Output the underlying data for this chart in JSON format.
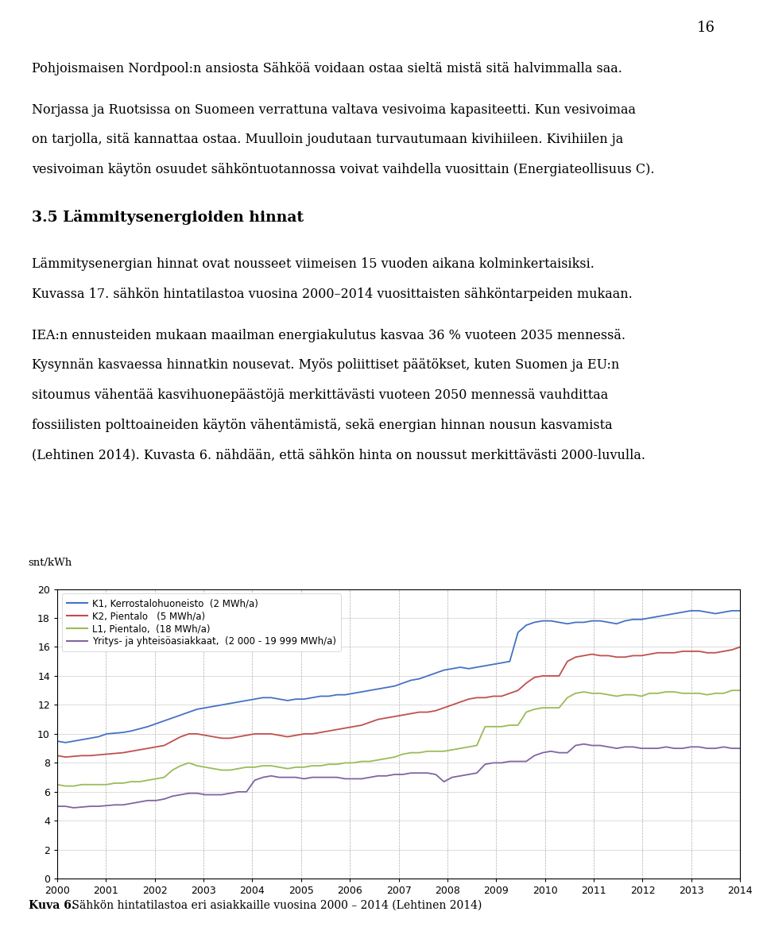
{
  "page_number": "16",
  "para1": "Pohjoismaisen Nordpool:n ansiosta Sähköä voidaan ostaa sieltä mistä sitä halvimmalla saa.",
  "para2a": "Norjassa ja Ruotsissa on Suomeen verrattuna valtava vesivoima kapasiteetti. Kun vesivoimaa",
  "para2b": "on tarjolla, sitä kannattaa ostaa. Muulloin joudutaan turvautumaan kivihiileen. Kivihiilen ja",
  "para2c": "vesivoiman käytön osuudet sähköntuotannossa voivat vaihdella vuosittain (Energiateollisuus C).",
  "heading": "3.5 Lämmitysenergioiden hinnat",
  "para3a": "Lämmitysenergian hinnat ovat nousseet viimeisen 15 vuoden aikana kolminkertaisiksi.",
  "para3b": "Kuvassa 17. sähkön hintatilastoa vuosina 2000–2014 vuosittaisten sähköntarpeiden mukaan.",
  "para4a": "IEA:n ennusteiden mukaan maailman energiakulutus kasvaa 36 % vuoteen 2035 mennessä.",
  "para4b": "Kysynnän kasvaessa hinnatkin nousevat. Myös poliittiset päätökset, kuten Suomen ja EU:n",
  "para4c": "sitoumus vähentää kasvihuonepäästöjä merkittävästi vuoteen 2050 mennessä vauhdittaa",
  "para4d": "fossiilisten polttoaineiden käytön vähentämistä, sekä energian hinnan nousun kasvamista",
  "para4e": "(Lehtinen 2014). Kuvasta 6. nähdään, että sähkön hinta on noussut merkittävästi 2000-luvulla.",
  "ylabel": "snt/kWh",
  "ylim": [
    0,
    20
  ],
  "yticks": [
    0,
    2,
    4,
    6,
    8,
    10,
    12,
    14,
    16,
    18,
    20
  ],
  "xlim": [
    2000,
    2014
  ],
  "xticks": [
    2000,
    2001,
    2002,
    2003,
    2004,
    2005,
    2006,
    2007,
    2008,
    2009,
    2010,
    2011,
    2012,
    2013,
    2014
  ],
  "legend_entries": [
    "K1, Kerrostalohuoneisto  (2 MWh/a)",
    "K2, Pientalo   (5 MWh/a)",
    "L1, Pientalo,  (18 MWh/a)",
    "Yritys- ja yhteisöasiakkaat,  (2 000 - 19 999 MWh/a)"
  ],
  "line_colors": [
    "#4472C4",
    "#C0504D",
    "#9BBB59",
    "#8064A2"
  ],
  "caption_bold": "Kuva 6.",
  "caption_normal": " Sähkön hintatilastoa eri asiakkaille vuosina 2000 – 2014 (Lehtinen 2014)",
  "K1_data": [
    9.5,
    9.4,
    9.5,
    9.6,
    9.7,
    9.8,
    10.0,
    10.05,
    10.1,
    10.2,
    10.35,
    10.5,
    10.7,
    10.9,
    11.1,
    11.3,
    11.5,
    11.7,
    11.8,
    11.9,
    12.0,
    12.1,
    12.2,
    12.3,
    12.4,
    12.5,
    12.5,
    12.4,
    12.3,
    12.4,
    12.4,
    12.5,
    12.6,
    12.6,
    12.7,
    12.7,
    12.8,
    12.9,
    13.0,
    13.1,
    13.2,
    13.3,
    13.5,
    13.7,
    13.8,
    14.0,
    14.2,
    14.4,
    14.5,
    14.6,
    14.5,
    14.6,
    14.7,
    14.8,
    14.9,
    15.0,
    17.0,
    17.5,
    17.7,
    17.8,
    17.8,
    17.7,
    17.6,
    17.7,
    17.7,
    17.8,
    17.8,
    17.7,
    17.6,
    17.8,
    17.9,
    17.9,
    18.0,
    18.1,
    18.2,
    18.3,
    18.4,
    18.5,
    18.5,
    18.4,
    18.3,
    18.4,
    18.5,
    18.5
  ],
  "K2_data": [
    8.5,
    8.4,
    8.45,
    8.5,
    8.5,
    8.55,
    8.6,
    8.65,
    8.7,
    8.8,
    8.9,
    9.0,
    9.1,
    9.2,
    9.5,
    9.8,
    10.0,
    10.0,
    9.9,
    9.8,
    9.7,
    9.7,
    9.8,
    9.9,
    10.0,
    10.0,
    10.0,
    9.9,
    9.8,
    9.9,
    10.0,
    10.0,
    10.1,
    10.2,
    10.3,
    10.4,
    10.5,
    10.6,
    10.8,
    11.0,
    11.1,
    11.2,
    11.3,
    11.4,
    11.5,
    11.5,
    11.6,
    11.8,
    12.0,
    12.2,
    12.4,
    12.5,
    12.5,
    12.6,
    12.6,
    12.8,
    13.0,
    13.5,
    13.9,
    14.0,
    14.0,
    14.0,
    15.0,
    15.3,
    15.4,
    15.5,
    15.4,
    15.4,
    15.3,
    15.3,
    15.4,
    15.4,
    15.5,
    15.6,
    15.6,
    15.6,
    15.7,
    15.7,
    15.7,
    15.6,
    15.6,
    15.7,
    15.8,
    16.0
  ],
  "L1_data": [
    6.5,
    6.4,
    6.4,
    6.5,
    6.5,
    6.5,
    6.5,
    6.6,
    6.6,
    6.7,
    6.7,
    6.8,
    6.9,
    7.0,
    7.5,
    7.8,
    8.0,
    7.8,
    7.7,
    7.6,
    7.5,
    7.5,
    7.6,
    7.7,
    7.7,
    7.8,
    7.8,
    7.7,
    7.6,
    7.7,
    7.7,
    7.8,
    7.8,
    7.9,
    7.9,
    8.0,
    8.0,
    8.1,
    8.1,
    8.2,
    8.3,
    8.4,
    8.6,
    8.7,
    8.7,
    8.8,
    8.8,
    8.8,
    8.9,
    9.0,
    9.1,
    9.2,
    10.5,
    10.5,
    10.5,
    10.6,
    10.6,
    11.5,
    11.7,
    11.8,
    11.8,
    11.8,
    12.5,
    12.8,
    12.9,
    12.8,
    12.8,
    12.7,
    12.6,
    12.7,
    12.7,
    12.6,
    12.8,
    12.8,
    12.9,
    12.9,
    12.8,
    12.8,
    12.8,
    12.7,
    12.8,
    12.8,
    13.0,
    13.0
  ],
  "purple_data": [
    5.0,
    5.0,
    4.9,
    4.95,
    5.0,
    5.0,
    5.05,
    5.1,
    5.1,
    5.2,
    5.3,
    5.4,
    5.4,
    5.5,
    5.7,
    5.8,
    5.9,
    5.9,
    5.8,
    5.8,
    5.8,
    5.9,
    6.0,
    6.0,
    6.8,
    7.0,
    7.1,
    7.0,
    7.0,
    7.0,
    6.9,
    7.0,
    7.0,
    7.0,
    7.0,
    6.9,
    6.9,
    6.9,
    7.0,
    7.1,
    7.1,
    7.2,
    7.2,
    7.3,
    7.3,
    7.3,
    7.2,
    6.7,
    7.0,
    7.1,
    7.2,
    7.3,
    7.9,
    8.0,
    8.0,
    8.1,
    8.1,
    8.1,
    8.5,
    8.7,
    8.8,
    8.7,
    8.7,
    9.2,
    9.3,
    9.2,
    9.2,
    9.1,
    9.0,
    9.1,
    9.1,
    9.0,
    9.0,
    9.0,
    9.1,
    9.0,
    9.0,
    9.1,
    9.1,
    9.0,
    9.0,
    9.1,
    9.0,
    9.0
  ]
}
